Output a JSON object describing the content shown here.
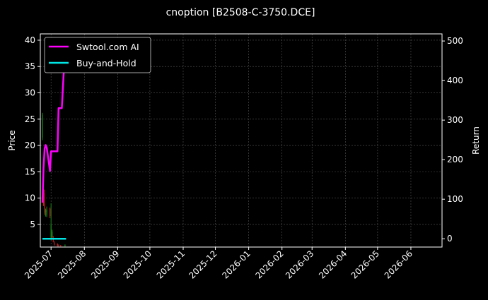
{
  "chart_data": {
    "type": "line",
    "title": "cnoption [B2508-C-3750.DCE]",
    "ylabel": "Price",
    "y2label": "Return",
    "xlim": [
      "2025-06-21",
      "2026-06-30"
    ],
    "ylim": [
      0.7,
      41.2
    ],
    "y2lim": [
      -21,
      518
    ],
    "x_ticks": [
      "2025-07",
      "2025-08",
      "2025-09",
      "2025-10",
      "2025-11",
      "2025-12",
      "2026-01",
      "2026-02",
      "2026-03",
      "2026-04",
      "2026-05",
      "2026-06"
    ],
    "y_ticks": [
      5,
      10,
      15,
      20,
      25,
      30,
      35,
      40
    ],
    "y2_ticks": [
      0,
      100,
      200,
      300,
      400,
      500
    ],
    "grid": true,
    "legend_position": "top-left",
    "colors": {
      "background": "#000000",
      "up": "#1a8c1a",
      "down": "#cc2222",
      "strategy": "#ff00ff",
      "benchmark": "#00e5e5",
      "grid": "#555555"
    },
    "candles": [
      {
        "date": "2025-06-23",
        "open": 21.5,
        "high": 26.2,
        "low": 21.0,
        "close": 25.8
      },
      {
        "date": "2025-06-24",
        "open": 11.0,
        "high": 11.8,
        "low": 8.5,
        "close": 9.0
      },
      {
        "date": "2025-06-25",
        "open": 9.0,
        "high": 11.6,
        "low": 6.8,
        "close": 7.2
      },
      {
        "date": "2025-06-26",
        "open": 7.5,
        "high": 8.0,
        "low": 6.5,
        "close": 7.6
      },
      {
        "date": "2025-06-27",
        "open": 6.8,
        "high": 8.4,
        "low": 6.4,
        "close": 7.8
      },
      {
        "date": "2025-06-30",
        "open": 8.0,
        "high": 8.2,
        "low": 6.2,
        "close": 6.6
      },
      {
        "date": "2025-07-01",
        "open": 2.5,
        "high": 9.0,
        "low": 2.0,
        "close": 5.0
      },
      {
        "date": "2025-07-02",
        "open": 2.6,
        "high": 4.0,
        "low": 2.2,
        "close": 3.6
      },
      {
        "date": "2025-07-03",
        "open": 2.3,
        "high": 2.8,
        "low": 1.6,
        "close": 2.0
      },
      {
        "date": "2025-07-04",
        "open": 1.4,
        "high": 1.8,
        "low": 1.0,
        "close": 1.2
      },
      {
        "date": "2025-07-07",
        "open": 1.2,
        "high": 1.4,
        "low": 0.8,
        "close": 1.0
      },
      {
        "date": "2025-07-08",
        "open": 1.0,
        "high": 1.2,
        "low": 0.8,
        "close": 0.9
      },
      {
        "date": "2025-07-10",
        "open": 1.0,
        "high": 1.1,
        "low": 0.8,
        "close": 0.9
      },
      {
        "date": "2025-07-14",
        "open": 0.9,
        "high": 1.2,
        "low": 0.8,
        "close": 1.1
      }
    ],
    "series": [
      {
        "name": "Swtool.com AI",
        "axis": "right",
        "x": [
          "2025-06-23",
          "2025-06-24",
          "2025-06-25",
          "2025-06-26",
          "2025-06-27",
          "2025-06-30",
          "2025-07-01",
          "2025-07-02",
          "2025-07-03",
          "2025-07-04",
          "2025-07-07",
          "2025-07-08",
          "2025-07-09",
          "2025-07-10",
          "2025-07-11",
          "2025-07-14",
          "2025-07-15"
        ],
        "values": [
          91,
          180,
          228,
          237,
          230,
          171,
          221,
          221,
          221,
          221,
          221,
          330,
          330,
          330,
          330,
          480,
          480
        ]
      },
      {
        "name": "Buy-and-Hold",
        "axis": "right",
        "x": [
          "2025-06-23",
          "2025-07-15"
        ],
        "values": [
          0,
          0
        ]
      }
    ]
  }
}
